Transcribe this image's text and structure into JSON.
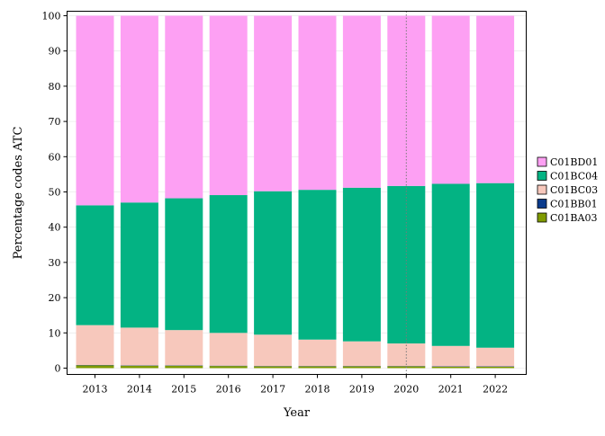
{
  "chart_data": {
    "type": "bar",
    "stacked": true,
    "percent": true,
    "title": "",
    "xlabel": "Year",
    "ylabel": "Percentage codes ATC",
    "ylim": [
      0,
      100
    ],
    "yticks": [
      0,
      10,
      20,
      30,
      40,
      50,
      60,
      70,
      80,
      90,
      100
    ],
    "categories": [
      "2013",
      "2014",
      "2015",
      "2016",
      "2017",
      "2018",
      "2019",
      "2020",
      "2021",
      "2022"
    ],
    "vline": "2020",
    "legend_position": "right",
    "grid": true,
    "series": [
      {
        "name": "C01BA03",
        "color": "#7f9a00",
        "values": [
          0.8,
          0.7,
          0.7,
          0.6,
          0.5,
          0.5,
          0.5,
          0.5,
          0.4,
          0.4
        ]
      },
      {
        "name": "C01BB01",
        "color": "#0b3b8c",
        "values": [
          0.1,
          0.1,
          0.1,
          0.1,
          0.1,
          0.1,
          0.1,
          0.1,
          0.1,
          0.1
        ]
      },
      {
        "name": "C01BC03",
        "color": "#f7c8bc",
        "values": [
          11.3,
          10.7,
          10.0,
          9.3,
          8.9,
          7.5,
          7.0,
          6.4,
          5.8,
          5.3
        ]
      },
      {
        "name": "C01BC04",
        "color": "#03b383",
        "values": [
          34.0,
          35.5,
          37.4,
          39.1,
          40.7,
          42.5,
          43.6,
          44.7,
          46.0,
          46.7
        ]
      },
      {
        "name": "C01BD01",
        "color": "#fda0f3",
        "values": [
          53.8,
          53.0,
          51.8,
          50.9,
          49.8,
          49.4,
          48.8,
          48.3,
          47.7,
          47.5
        ]
      }
    ],
    "legend_order": [
      "C01BD01",
      "C01BC04",
      "C01BC03",
      "C01BB01",
      "C01BA03"
    ]
  }
}
